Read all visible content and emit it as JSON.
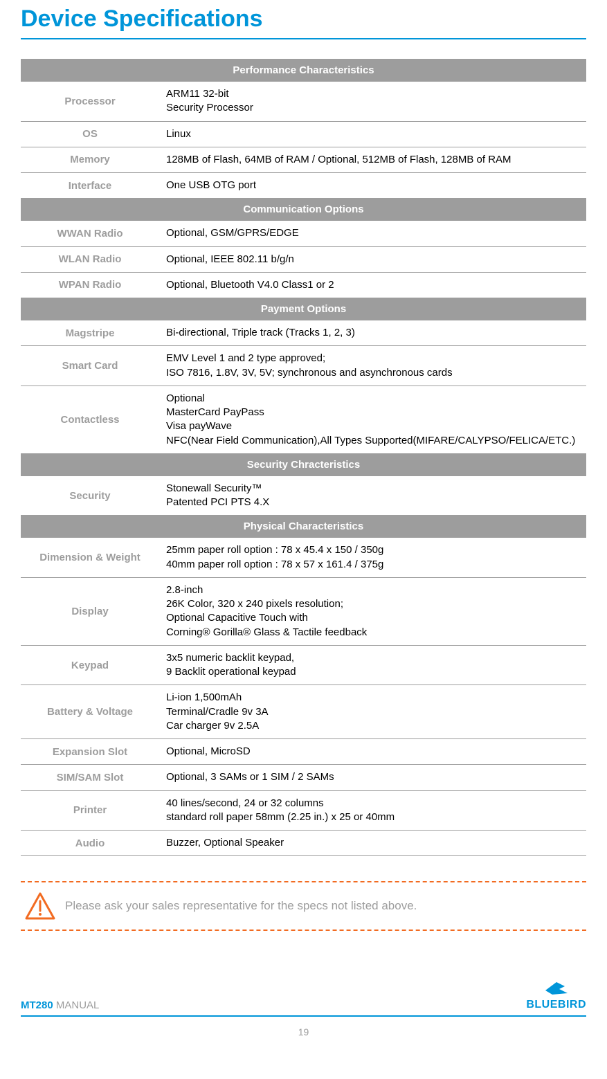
{
  "title": "Device Specifications",
  "colors": {
    "accent": "#0095d9",
    "section_bg": "#9d9d9d",
    "section_fg": "#ffffff",
    "label_fg": "#9d9d9d",
    "border": "#9d9d9d",
    "note_border": "#f26b21",
    "note_text": "#9d9d9d"
  },
  "sections": [
    {
      "header": "Performance Characteristics",
      "rows": [
        {
          "label": "Processor",
          "value": "ARM11 32-bit\nSecurity Processor"
        },
        {
          "label": "OS",
          "value": "Linux"
        },
        {
          "label": "Memory",
          "value": "128MB of Flash, 64MB of RAM / Optional, 512MB of Flash, 128MB of RAM"
        },
        {
          "label": "Interface",
          "value": "One USB OTG port"
        }
      ]
    },
    {
      "header": "Communication Options",
      "rows": [
        {
          "label": "WWAN Radio",
          "value": "Optional, GSM/GPRS/EDGE"
        },
        {
          "label": "WLAN Radio",
          "value": "Optional, IEEE 802.11 b/g/n"
        },
        {
          "label": "WPAN Radio",
          "value": "Optional, Bluetooth V4.0 Class1 or 2"
        }
      ]
    },
    {
      "header": "Payment Options",
      "rows": [
        {
          "label": "Magstripe",
          "value": "Bi-directional, Triple track (Tracks 1, 2, 3)"
        },
        {
          "label": "Smart Card",
          "value": "EMV Level 1 and 2 type approved;\nISO 7816, 1.8V, 3V, 5V; synchronous and asynchronous cards"
        },
        {
          "label": "Contactless",
          "value": "Optional\nMasterCard PayPass\nVisa payWave\nNFC(Near Field Communication),All Types Supported(MIFARE/CALYPSO/FELICA/ETC.)"
        }
      ]
    },
    {
      "header": "Security Chracteristics",
      "rows": [
        {
          "label": "Security",
          "value": "Stonewall Security™\nPatented PCI PTS 4.X"
        }
      ]
    },
    {
      "header": "Physical Characteristics",
      "rows": [
        {
          "label": "Dimension & Weight",
          "value": "25mm paper roll option : 78 x 45.4 x 150 / 350g\n40mm paper roll option : 78 x 57 x 161.4 / 375g"
        },
        {
          "label": "Display",
          "value": "2.8-inch\n26K Color, 320 x 240 pixels resolution;\nOptional Capacitive Touch with\nCorning® Gorilla® Glass & Tactile feedback"
        },
        {
          "label": "Keypad",
          "value": "3x5 numeric backlit keypad,\n9 Backlit operational keypad"
        },
        {
          "label": "Battery & Voltage",
          "value": "Li-ion 1,500mAh\nTerminal/Cradle 9v 3A\nCar charger 9v 2.5A"
        },
        {
          "label": "Expansion Slot",
          "value": "Optional, MicroSD"
        },
        {
          "label": "SIM/SAM Slot",
          "value": "Optional, 3 SAMs or 1 SIM / 2 SAMs"
        },
        {
          "label": "Printer",
          "value": "40 lines/second, 24 or 32 columns\nstandard roll paper 58mm (2.25 in.) x 25 or 40mm"
        },
        {
          "label": "Audio",
          "value": "Buzzer, Optional Speaker"
        }
      ]
    }
  ],
  "note": "Please ask your sales representative for the specs not listed above.",
  "footer": {
    "model": "MT280",
    "suffix": " MANUAL",
    "brand": "BLUEBIRD",
    "page_number": "19"
  }
}
